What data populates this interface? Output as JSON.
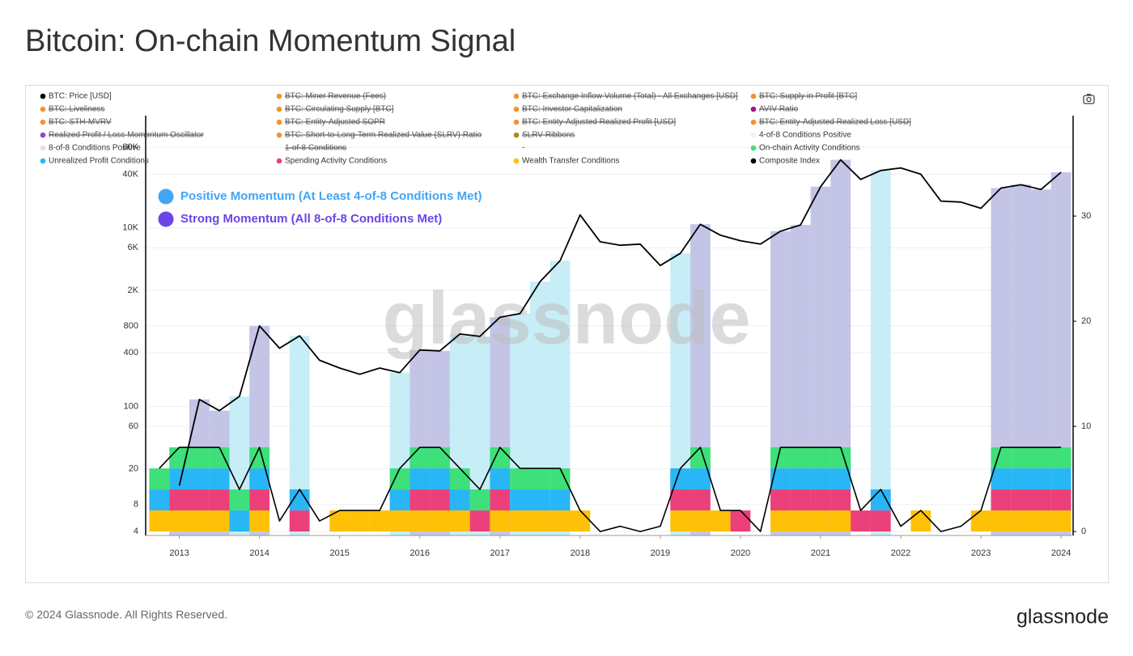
{
  "page_title": "Bitcoin: On-chain Momentum Signal",
  "footer": "© 2024 Glassnode. All Rights Reserved.",
  "logo": "glassnode",
  "chart_data": {
    "type": "line",
    "watermark": "glassnode",
    "annotations": [
      {
        "text": "Positive Momentum (At Least 4-of-8 Conditions Met)",
        "color": "#42a5f5"
      },
      {
        "text": "Strong Momentum (All 8-of-8 Conditions Met)",
        "color": "#6b45e8"
      }
    ],
    "x": [
      2012.75,
      2013,
      2013.25,
      2013.5,
      2013.75,
      2014,
      2014.25,
      2014.5,
      2014.75,
      2015,
      2015.25,
      2015.5,
      2015.75,
      2016,
      2016.25,
      2016.5,
      2016.75,
      2017,
      2017.25,
      2017.5,
      2017.75,
      2018,
      2018.25,
      2018.5,
      2018.75,
      2019,
      2019.25,
      2019.5,
      2019.75,
      2020,
      2020.25,
      2020.5,
      2020.75,
      2021,
      2021.25,
      2021.5,
      2021.75,
      2022,
      2022.25,
      2022.5,
      2022.75,
      2023,
      2023.25,
      2023.5,
      2023.75,
      2024
    ],
    "xlim": [
      2012.58,
      2024.15
    ],
    "xticks": [
      2013,
      2014,
      2015,
      2016,
      2017,
      2018,
      2019,
      2020,
      2021,
      2022,
      2023,
      2024
    ],
    "ylog": true,
    "ylim": [
      3.6,
      181000
    ],
    "yticks": [
      4,
      8,
      20,
      60,
      100,
      400,
      800,
      {
        "value": 2000,
        "label": "2K"
      },
      {
        "value": 6000,
        "label": "6K"
      },
      {
        "value": 10000,
        "label": "10K"
      },
      {
        "value": 40000,
        "label": "40K"
      },
      {
        "value": 80000,
        "label": "80K"
      }
    ],
    "y2lim": [
      -0.38,
      39.55
    ],
    "y2ticks": [
      0,
      10,
      20,
      30
    ],
    "grid": true,
    "series": [
      {
        "name": "BTC: Price [USD]",
        "color": "#000000",
        "struck": false,
        "kind": "line",
        "values": [
          null,
          13,
          120,
          90,
          130,
          800,
          450,
          620,
          330,
          270,
          230,
          270,
          240,
          430,
          420,
          650,
          610,
          1000,
          1100,
          2500,
          4300,
          14000,
          7000,
          6400,
          6600,
          3800,
          5200,
          11000,
          8300,
          7200,
          6600,
          9200,
          10800,
          29000,
          58000,
          35000,
          44000,
          47000,
          40000,
          20000,
          19500,
          16600,
          28000,
          30500,
          27000,
          42000
        ]
      },
      {
        "name": "BTC: Miner Revenue (Fees)",
        "color": "#f5922f",
        "struck": true
      },
      {
        "name": "BTC: Exchange Inflow Volume (Total) - All Exchanges [USD]",
        "color": "#f5922f",
        "struck": true
      },
      {
        "name": "BTC: Supply in Profit [BTC]",
        "color": "#f5922f",
        "struck": true
      },
      {
        "name": "BTC: Liveliness",
        "color": "#f5922f",
        "struck": true
      },
      {
        "name": "BTC: Circulating Supply [BTC]",
        "color": "#f5922f",
        "struck": true
      },
      {
        "name": "BTC: Investor Capitalization",
        "color": "#f5922f",
        "struck": true
      },
      {
        "name": "AVIV Ratio",
        "color": "#a0168f",
        "struck": true
      },
      {
        "name": "BTC: STH-MVRV",
        "color": "#f5922f",
        "struck": true
      },
      {
        "name": "BTC: Entity-Adjusted SOPR",
        "color": "#f5922f",
        "struck": true
      },
      {
        "name": "BTC: Entity-Adjusted Realized Profit [USD]",
        "color": "#f5922f",
        "struck": true
      },
      {
        "name": "BTC: Entity-Adjusted Realized Loss [USD]",
        "color": "#f5922f",
        "struck": true
      },
      {
        "name": "Realized Profit / Loss Momentum Oscillator",
        "color": "#9b3fd4",
        "struck": true
      },
      {
        "name": "BTC: Short-to-Long-Term Realized Value (SLRV) Ratio",
        "color": "#f5922f",
        "struck": true
      },
      {
        "name": "SLRV Ribbons",
        "color": "#b08a1a",
        "struck": true
      },
      {
        "name": "4-of-8 Conditions Positive",
        "color": "#f2f2f2",
        "band_color": "#bdeaf6",
        "struck": false,
        "kind": "band",
        "values": [
          1,
          1,
          1,
          1,
          1,
          1,
          0,
          1,
          0,
          0,
          0,
          0,
          1,
          1,
          1,
          1,
          1,
          1,
          1,
          1,
          1,
          0,
          0,
          0,
          0,
          0,
          1,
          1,
          0,
          0,
          0,
          1,
          1,
          1,
          1,
          0,
          1,
          0,
          0,
          0,
          0,
          0,
          1,
          1,
          1,
          1
        ]
      },
      {
        "name": "8-of-8 Conditions Positive",
        "color": "#e2e2e2",
        "band_color": "#c3bde3",
        "struck": false,
        "kind": "band",
        "values": [
          0,
          1,
          1,
          1,
          0,
          1,
          0,
          0,
          0,
          0,
          0,
          0,
          0,
          1,
          1,
          0,
          0,
          1,
          0,
          0,
          0,
          0,
          0,
          0,
          0,
          0,
          0,
          1,
          0,
          0,
          0,
          1,
          1,
          1,
          1,
          0,
          0,
          0,
          0,
          0,
          0,
          0,
          1,
          1,
          1,
          1
        ]
      },
      {
        "name": "1-of-8 Conditions",
        "struck": true
      },
      {
        "name": "-",
        "struck": false
      },
      {
        "name": "On-chain Activity Conditions",
        "color": "#3ee07a",
        "struck": false,
        "kind": "stack",
        "axis": "y2",
        "values": [
          2,
          2,
          2,
          2,
          2,
          2,
          0,
          0,
          0,
          0,
          0,
          0,
          2,
          2,
          2,
          2,
          2,
          2,
          2,
          2,
          2,
          0,
          0,
          0,
          0,
          0,
          0,
          2,
          0,
          0,
          0,
          2,
          2,
          2,
          2,
          0,
          0,
          0,
          0,
          0,
          0,
          0,
          2,
          2,
          2,
          2
        ]
      },
      {
        "name": "Unrealized Profit Conditions",
        "color": "#29b6f6",
        "struck": false,
        "kind": "stack",
        "axis": "y2",
        "values": [
          2,
          2,
          2,
          2,
          2,
          2,
          0,
          2,
          0,
          0,
          0,
          0,
          2,
          2,
          2,
          2,
          0,
          2,
          2,
          2,
          2,
          0,
          0,
          0,
          0,
          0,
          2,
          2,
          0,
          0,
          0,
          2,
          2,
          2,
          2,
          0,
          2,
          0,
          0,
          0,
          0,
          0,
          2,
          2,
          2,
          2
        ]
      },
      {
        "name": "Spending Activity Conditions",
        "color": "#ec407a",
        "struck": false,
        "kind": "stack",
        "axis": "y2",
        "values": [
          0,
          2,
          2,
          2,
          0,
          2,
          0,
          2,
          0,
          0,
          0,
          0,
          0,
          2,
          2,
          0,
          2,
          2,
          0,
          0,
          0,
          0,
          0,
          0,
          0,
          0,
          2,
          2,
          0,
          2,
          0,
          2,
          2,
          2,
          2,
          2,
          2,
          0,
          0,
          0,
          0,
          0,
          2,
          2,
          2,
          2
        ]
      },
      {
        "name": "Wealth Transfer Conditions",
        "color": "#ffc107",
        "struck": false,
        "kind": "stack",
        "axis": "y2",
        "values": [
          2,
          2,
          2,
          2,
          0,
          2,
          0,
          0,
          0,
          2,
          2,
          2,
          2,
          2,
          2,
          2,
          0,
          2,
          2,
          2,
          2,
          2,
          0,
          0,
          0,
          0,
          2,
          2,
          2,
          0,
          0,
          2,
          2,
          2,
          2,
          0,
          0,
          0,
          2,
          0,
          0,
          2,
          2,
          2,
          2,
          2
        ]
      },
      {
        "name": "Composite Index",
        "color": "#000000",
        "struck": false,
        "kind": "line",
        "axis": "y2",
        "values": [
          6,
          8,
          8,
          8,
          4,
          8,
          1,
          4,
          1,
          2,
          2,
          2,
          6,
          8,
          8,
          6,
          4,
          8,
          6,
          6,
          6,
          2,
          0,
          0.5,
          0,
          0.5,
          6,
          8,
          2,
          2,
          0,
          8,
          8,
          8,
          8,
          2,
          4,
          0.5,
          2,
          0,
          0.5,
          2,
          8,
          8,
          8,
          8
        ]
      }
    ]
  }
}
